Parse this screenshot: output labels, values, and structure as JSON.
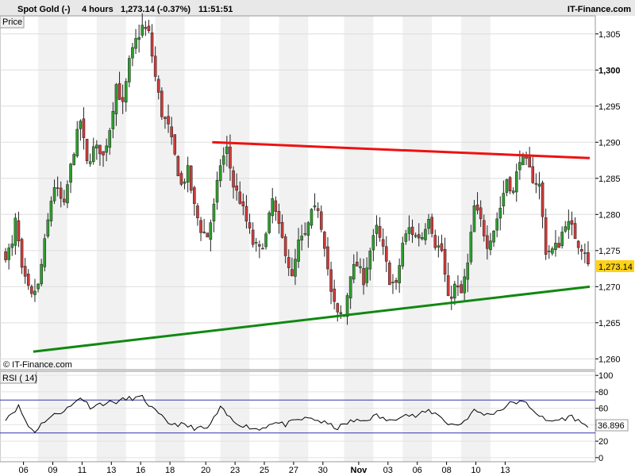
{
  "header": {
    "title": "Spot Gold (-)",
    "interval": "4 hours",
    "quote": "1,273.14 (-0.37%)",
    "time": "11:51:51",
    "brand": "IT-Finance.com"
  },
  "panels": {
    "price_label": "Price",
    "watermark": "© IT-Finance.com",
    "rsi_label": "RSI ( 14)",
    "last_price_tag": "1,273.14",
    "rsi_value_tag": "36.896"
  },
  "colors": {
    "up": "#2e9e2e",
    "down": "#cc3b3b",
    "resistance": "#ee1111",
    "support": "#118811",
    "price_tag": "#ffd21a",
    "rsi_band": "#3333aa"
  },
  "chart_data": [
    {
      "type": "candlestick",
      "title": "Spot Gold (-)",
      "ylabel": "Price",
      "ylim": [
        1258.5,
        1307.5
      ],
      "yticks": [
        1260,
        1265,
        1270,
        1275,
        1280,
        1285,
        1290,
        1295,
        1300,
        1305
      ],
      "ytick_labels": [
        "1,260",
        "1,265",
        "1,270",
        "1,275",
        "1,280",
        "1,285",
        "1,290",
        "1,295",
        "1,300",
        "1,305"
      ],
      "bold_tick": "1,300",
      "x_tick_labels": [
        "06",
        "09",
        "11",
        "13",
        "16",
        "18",
        "20",
        "23",
        "25",
        "27",
        "30",
        "Nov",
        "03",
        "06",
        "08",
        "10",
        "13"
      ],
      "bar_count": 180,
      "anchors": [
        [
          0,
          1274.5
        ],
        [
          2,
          1275.5
        ],
        [
          3,
          1279
        ],
        [
          4,
          1276
        ],
        [
          5,
          1272
        ],
        [
          7,
          1269.5
        ],
        [
          8,
          1268.5
        ],
        [
          9,
          1269.5
        ],
        [
          10,
          1270
        ],
        [
          11,
          1273
        ],
        [
          12,
          1276
        ],
        [
          14,
          1282
        ],
        [
          15,
          1284
        ],
        [
          16,
          1283
        ],
        [
          18,
          1281
        ],
        [
          19,
          1284
        ],
        [
          21,
          1289
        ],
        [
          23,
          1293
        ],
        [
          25,
          1287
        ],
        [
          27,
          1289
        ],
        [
          29,
          1289
        ],
        [
          30,
          1288
        ],
        [
          32,
          1292
        ],
        [
          34,
          1298
        ],
        [
          36,
          1295
        ],
        [
          38,
          1301
        ],
        [
          40,
          1304
        ],
        [
          42,
          1306
        ],
        [
          44,
          1305
        ],
        [
          46,
          1299
        ],
        [
          48,
          1294
        ],
        [
          50,
          1292
        ],
        [
          52,
          1288
        ],
        [
          54,
          1284
        ],
        [
          56,
          1286
        ],
        [
          58,
          1281
        ],
        [
          60,
          1278
        ],
        [
          62,
          1277
        ],
        [
          64,
          1281
        ],
        [
          66,
          1287
        ],
        [
          68,
          1289
        ],
        [
          70,
          1284
        ],
        [
          72,
          1282
        ],
        [
          74,
          1279
        ],
        [
          76,
          1276
        ],
        [
          78,
          1275
        ],
        [
          80,
          1277
        ],
        [
          82,
          1282
        ],
        [
          84,
          1278
        ],
        [
          86,
          1275
        ],
        [
          88,
          1271
        ],
        [
          90,
          1276
        ],
        [
          92,
          1277
        ],
        [
          94,
          1280
        ],
        [
          96,
          1281
        ],
        [
          98,
          1276
        ],
        [
          100,
          1269
        ],
        [
          102,
          1266
        ],
        [
          104,
          1266
        ],
        [
          106,
          1272
        ],
        [
          108,
          1273
        ],
        [
          110,
          1271
        ],
        [
          112,
          1275
        ],
        [
          114,
          1278
        ],
        [
          116,
          1275
        ],
        [
          118,
          1271
        ],
        [
          120,
          1270
        ],
        [
          122,
          1276
        ],
        [
          124,
          1278
        ],
        [
          126,
          1277
        ],
        [
          128,
          1277
        ],
        [
          130,
          1280
        ],
        [
          132,
          1276
        ],
        [
          134,
          1275
        ],
        [
          136,
          1268
        ],
        [
          138,
          1270
        ],
        [
          140,
          1269
        ],
        [
          142,
          1273
        ],
        [
          144,
          1281
        ],
        [
          146,
          1279
        ],
        [
          148,
          1276
        ],
        [
          150,
          1278
        ],
        [
          152,
          1281
        ],
        [
          154,
          1285
        ],
        [
          156,
          1283
        ],
        [
          158,
          1288
        ],
        [
          160,
          1287
        ],
        [
          162,
          1285
        ],
        [
          164,
          1284
        ],
        [
          166,
          1275
        ],
        [
          168,
          1275
        ],
        [
          170,
          1276
        ],
        [
          172,
          1279
        ],
        [
          174,
          1278
        ],
        [
          176,
          1276
        ],
        [
          178,
          1275
        ],
        [
          179,
          1273.14
        ]
      ],
      "last": 1273.14,
      "change_pct": -0.37,
      "trendlines": [
        {
          "name": "resistance",
          "from": [
            64,
            1290
          ],
          "to": [
            180,
            1287.8
          ]
        },
        {
          "name": "support",
          "from": [
            9,
            1261
          ],
          "to": [
            180,
            1270
          ]
        }
      ]
    },
    {
      "type": "line",
      "title": "RSI ( 14)",
      "ylim": [
        -5,
        105
      ],
      "yticks": [
        0,
        20,
        40,
        60,
        80,
        100
      ],
      "ytick_labels": [
        "0",
        "20",
        "40",
        "60",
        "80",
        "100"
      ],
      "bands": [
        70,
        30
      ],
      "anchors": [
        [
          0,
          48
        ],
        [
          4,
          62
        ],
        [
          7,
          38
        ],
        [
          9,
          32
        ],
        [
          12,
          45
        ],
        [
          16,
          54
        ],
        [
          20,
          62
        ],
        [
          23,
          74
        ],
        [
          26,
          62
        ],
        [
          30,
          66
        ],
        [
          34,
          68
        ],
        [
          38,
          72
        ],
        [
          42,
          73
        ],
        [
          46,
          56
        ],
        [
          50,
          42
        ],
        [
          54,
          40
        ],
        [
          58,
          36
        ],
        [
          62,
          35
        ],
        [
          66,
          60
        ],
        [
          70,
          44
        ],
        [
          74,
          38
        ],
        [
          78,
          34
        ],
        [
          82,
          43
        ],
        [
          86,
          40
        ],
        [
          90,
          46
        ],
        [
          94,
          48
        ],
        [
          98,
          42
        ],
        [
          102,
          36
        ],
        [
          106,
          44
        ],
        [
          110,
          45
        ],
        [
          114,
          51
        ],
        [
          118,
          44
        ],
        [
          122,
          53
        ],
        [
          126,
          50
        ],
        [
          130,
          57
        ],
        [
          134,
          50
        ],
        [
          136,
          40
        ],
        [
          140,
          41
        ],
        [
          144,
          57
        ],
        [
          148,
          52
        ],
        [
          152,
          58
        ],
        [
          156,
          68
        ],
        [
          160,
          66
        ],
        [
          162,
          59
        ],
        [
          166,
          44
        ],
        [
          170,
          46
        ],
        [
          174,
          50
        ],
        [
          179,
          37
        ]
      ],
      "last": 36.896
    }
  ]
}
